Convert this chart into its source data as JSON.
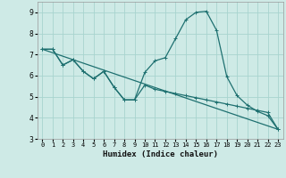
{
  "xlabel": "Humidex (Indice chaleur)",
  "xlim": [
    -0.5,
    23.5
  ],
  "ylim": [
    3.0,
    9.5
  ],
  "yticks": [
    3,
    4,
    5,
    6,
    7,
    8,
    9
  ],
  "xticks": [
    0,
    1,
    2,
    3,
    4,
    5,
    6,
    7,
    8,
    9,
    10,
    11,
    12,
    13,
    14,
    15,
    16,
    17,
    18,
    19,
    20,
    21,
    22,
    23
  ],
  "bg_color": "#ceeae6",
  "grid_color": "#a8d4cf",
  "line_color": "#1e7070",
  "line1_x": [
    0,
    1,
    2,
    3,
    4,
    5,
    6,
    7,
    8,
    9,
    10,
    11,
    12,
    13,
    14,
    15,
    16,
    17,
    18,
    19,
    20,
    21,
    22,
    23
  ],
  "line1_y": [
    7.25,
    7.25,
    6.5,
    6.75,
    6.2,
    5.85,
    6.2,
    5.45,
    4.85,
    4.85,
    6.15,
    6.7,
    6.85,
    7.75,
    8.65,
    9.0,
    9.05,
    8.15,
    5.95,
    5.05,
    4.6,
    4.3,
    4.1,
    3.45
  ],
  "line2_x": [
    0,
    23
  ],
  "line2_y": [
    7.25,
    3.45
  ],
  "line3_x": [
    0,
    1,
    2,
    3,
    4,
    5,
    6,
    7,
    8,
    9,
    10,
    11,
    12,
    13,
    14,
    15,
    16,
    17,
    18,
    19,
    20,
    21,
    22,
    23
  ],
  "line3_y": [
    7.25,
    7.25,
    6.5,
    6.75,
    6.2,
    5.85,
    6.2,
    5.45,
    4.85,
    4.85,
    5.55,
    5.35,
    5.25,
    5.15,
    5.05,
    4.95,
    4.85,
    4.75,
    4.65,
    4.55,
    4.45,
    4.35,
    4.25,
    3.45
  ]
}
